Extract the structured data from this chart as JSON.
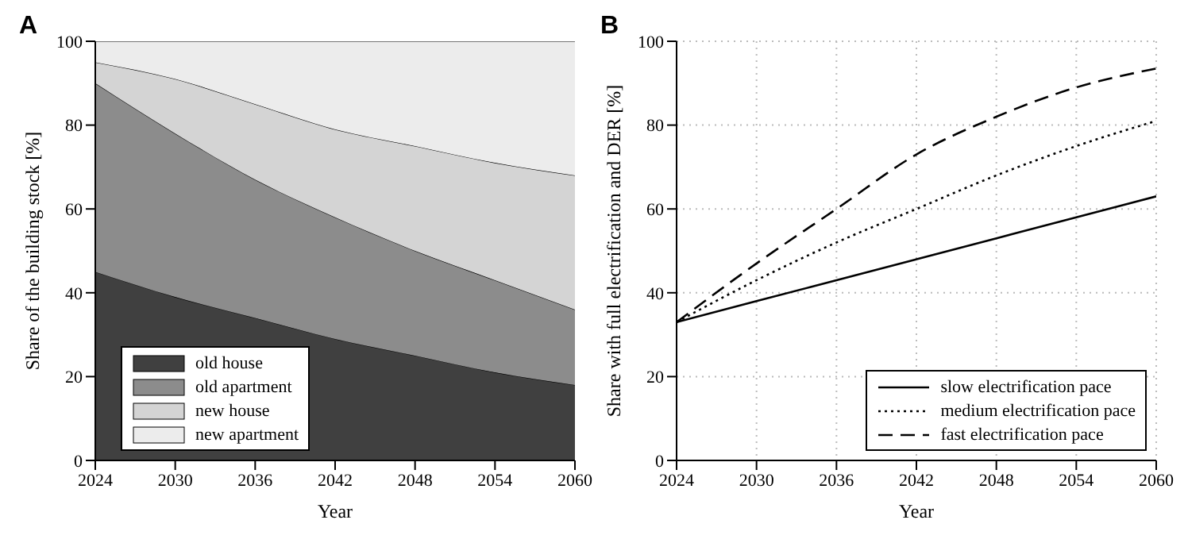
{
  "chart_data": [
    {
      "type": "area",
      "title": "A",
      "xlabel": "Year",
      "ylabel": "Share of the building stock [%]",
      "stacked": true,
      "x": [
        2024,
        2030,
        2036,
        2042,
        2048,
        2054,
        2060
      ],
      "xlim": [
        2024,
        2060
      ],
      "xticks": [
        2024,
        2030,
        2036,
        2042,
        2048,
        2054,
        2060
      ],
      "ylim": [
        0,
        100
      ],
      "yticks": [
        0,
        20,
        40,
        60,
        80,
        100
      ],
      "grid": false,
      "legend": "bottom left",
      "series": [
        {
          "name": "old house",
          "color": "#404040",
          "values": [
            45,
            39,
            34,
            29,
            25,
            21,
            18
          ]
        },
        {
          "name": "old apartment",
          "color": "#8c8c8c",
          "values": [
            45,
            39,
            33,
            29,
            25,
            22,
            18
          ]
        },
        {
          "name": "new house",
          "color": "#d4d4d4",
          "values": [
            5,
            13,
            18,
            21,
            25,
            28,
            32
          ]
        },
        {
          "name": "new apartment",
          "color": "#ececec",
          "values": [
            5,
            9,
            15,
            21,
            25,
            29,
            32
          ]
        }
      ]
    },
    {
      "type": "line",
      "title": "B",
      "xlabel": "Year",
      "ylabel": "Share with full electrification and DER [%]",
      "x": [
        2024,
        2030,
        2036,
        2042,
        2048,
        2054,
        2060
      ],
      "xlim": [
        2024,
        2060
      ],
      "xticks": [
        2024,
        2030,
        2036,
        2042,
        2048,
        2054,
        2060
      ],
      "ylim": [
        0,
        100
      ],
      "yticks": [
        0,
        20,
        40,
        60,
        80,
        100
      ],
      "grid": true,
      "legend": "bottom right",
      "marker": "none",
      "series": [
        {
          "name": "slow electrification pace",
          "color": "#000000",
          "line_style": "solid",
          "values": [
            33,
            38,
            43,
            48,
            53,
            58,
            63
          ]
        },
        {
          "name": "medium electrification pace",
          "color": "#000000",
          "line_style": "dotted",
          "values": [
            33,
            43,
            52,
            60,
            68,
            75,
            81
          ]
        },
        {
          "name": "fast electrification pace",
          "color": "#000000",
          "line_style": "dashed",
          "values": [
            33,
            47,
            60,
            73,
            82,
            89,
            93.5
          ]
        }
      ]
    }
  ]
}
